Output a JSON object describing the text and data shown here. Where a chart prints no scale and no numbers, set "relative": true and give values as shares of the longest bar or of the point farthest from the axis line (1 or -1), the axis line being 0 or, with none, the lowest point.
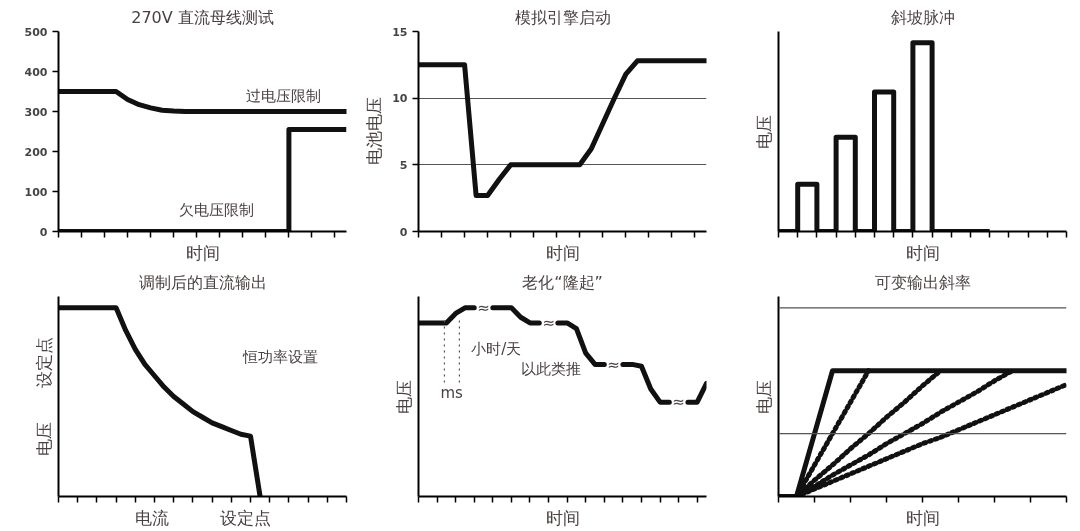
{
  "chart_data": [
    {
      "type": "line",
      "title": "270V 直流母线测试",
      "xlabel": "时间",
      "ylim": [
        0,
        500
      ],
      "yticks": [
        0,
        100,
        200,
        300,
        400,
        500
      ],
      "tick_labels": "y",
      "grid": false,
      "categories": [
        null,
        null,
        null,
        null,
        null,
        null,
        null,
        null,
        null,
        null,
        null,
        null,
        null,
        null,
        null,
        null,
        null,
        null,
        null,
        null,
        null,
        null,
        null,
        null,
        null,
        null
      ],
      "series": [
        {
          "color": "#111111",
          "values": [
            350,
            350,
            350,
            350,
            350,
            350,
            330,
            317,
            309,
            303,
            301,
            300,
            300,
            300,
            300,
            300,
            300,
            300,
            300,
            300,
            300,
            300,
            300,
            300,
            300,
            300
          ]
        },
        {
          "type": "step",
          "color": "#111111",
          "values": [
            0,
            0,
            0,
            0,
            0,
            0,
            0,
            0,
            0,
            0,
            0,
            0,
            0,
            0,
            0,
            0,
            0,
            0,
            0,
            0,
            255,
            255,
            255,
            255,
            255,
            255
          ]
        }
      ],
      "annotations": [
        "过电压限制",
        "欠电压限制"
      ]
    },
    {
      "type": "line",
      "title": "模拟引擎启动",
      "xlabel": "时间",
      "ylabel": "电池电压",
      "ylim": [
        0,
        15
      ],
      "yticks": [
        0,
        5,
        10,
        15
      ],
      "tick_labels": "y",
      "grid": "y",
      "categories": [
        null,
        null,
        null,
        null,
        null,
        null,
        null,
        null,
        null,
        null,
        null,
        null,
        null,
        null,
        null,
        null,
        null,
        null,
        null,
        null,
        null,
        null,
        null,
        null,
        null,
        null
      ],
      "series": [
        {
          "color": "#111111",
          "values": [
            12.5,
            12.5,
            12.5,
            12.5,
            12.5,
            2.7,
            2.7,
            3.9,
            5,
            5,
            5,
            5,
            5,
            5,
            5,
            6.2,
            8.1,
            10,
            11.8,
            12.8,
            12.8,
            12.8,
            12.8,
            12.8,
            12.8,
            12.8
          ]
        }
      ]
    },
    {
      "type": "step",
      "title": "斜坡脉冲",
      "xlabel": "时间",
      "ylabel": "电压",
      "relative": true,
      "tick_labels": false,
      "grid": false,
      "categories": [
        null,
        null,
        null,
        null,
        null,
        null,
        null,
        null,
        null,
        null,
        null,
        null,
        null,
        null,
        null,
        null
      ],
      "series": [
        {
          "color": "#111111",
          "values": [
            0,
            0.25,
            0,
            0.5,
            0,
            0.74,
            0,
            1,
            0,
            0,
            0,
            0,
            null,
            null,
            null,
            null
          ]
        }
      ]
    },
    {
      "type": "line",
      "title": "调制后的直流输出",
      "xlabel": "电流　　　设定点",
      "ylabel": "电压　　设定点",
      "relative": true,
      "tick_labels": false,
      "grid": false,
      "categories": [
        null,
        null,
        null,
        null,
        null,
        null,
        null,
        null,
        null,
        null,
        null,
        null,
        null,
        null,
        null,
        null,
        null,
        null,
        null,
        null,
        null,
        null,
        null,
        null,
        null,
        null,
        null,
        null,
        null,
        null,
        null
      ],
      "series": [
        {
          "color": "#111111",
          "values": [
            1,
            1,
            1,
            1,
            1,
            1,
            1,
            0.88,
            0.78,
            0.7,
            0.64,
            0.58,
            0.53,
            0.49,
            0.45,
            0.42,
            0.39,
            0.37,
            0.35,
            0.33,
            0.32,
            0,
            null,
            null,
            null,
            null,
            null,
            null,
            null,
            null,
            null
          ]
        }
      ],
      "annotations": [
        "恒功率设置"
      ]
    },
    {
      "type": "line",
      "title": "老化“隆起”",
      "xlabel": "时间",
      "ylabel": "电压",
      "relative": true,
      "tick_labels": false,
      "grid": false,
      "categories": [
        null,
        null,
        null,
        null,
        null,
        null,
        null,
        null,
        null,
        null,
        null,
        null,
        null,
        null,
        null,
        null,
        null,
        null,
        null,
        null,
        null,
        null,
        null,
        null,
        null,
        null,
        null,
        null,
        null,
        null,
        null,
        null
      ],
      "series": [
        {
          "color": "#111111",
          "values": [
            0.92,
            0.92,
            0.92,
            0.92,
            0.97,
            1,
            1,
            null,
            null,
            null,
            null,
            null,
            null,
            null,
            null,
            null,
            null,
            null,
            null,
            null,
            null,
            null,
            null,
            null,
            null,
            null,
            null,
            null,
            null,
            null,
            null,
            null
          ]
        },
        {
          "color": "#111111",
          "values": [
            null,
            null,
            null,
            null,
            null,
            null,
            null,
            null,
            1,
            1,
            1,
            0.95,
            0.92,
            0.92,
            null,
            null,
            null,
            null,
            null,
            null,
            null,
            null,
            null,
            null,
            null,
            null,
            null,
            null,
            null,
            null,
            null,
            null
          ]
        },
        {
          "color": "#111111",
          "values": [
            null,
            null,
            null,
            null,
            null,
            null,
            null,
            null,
            null,
            null,
            null,
            null,
            null,
            null,
            null,
            0.92,
            0.92,
            0.89,
            0.76,
            0.7,
            0.7,
            null,
            null,
            null,
            null,
            null,
            null,
            null,
            null,
            null,
            null,
            null
          ]
        },
        {
          "color": "#111111",
          "values": [
            null,
            null,
            null,
            null,
            null,
            null,
            null,
            null,
            null,
            null,
            null,
            null,
            null,
            null,
            null,
            null,
            null,
            null,
            null,
            null,
            null,
            null,
            0.7,
            0.7,
            0.69,
            0.57,
            0.5,
            0.5,
            null,
            null,
            null,
            null
          ]
        },
        {
          "color": "#111111",
          "values": [
            null,
            null,
            null,
            null,
            null,
            null,
            null,
            null,
            null,
            null,
            null,
            null,
            null,
            null,
            null,
            null,
            null,
            null,
            null,
            null,
            null,
            null,
            null,
            null,
            null,
            null,
            null,
            null,
            null,
            0.5,
            0.5,
            0.6
          ]
        }
      ],
      "annotations": [
        "≈",
        "≈",
        "≈",
        "≈",
        "小时/天",
        "以此类推",
        "ms"
      ]
    },
    {
      "type": "line",
      "title": "可变输出斜率",
      "xlabel": "时间",
      "ylabel": "电压",
      "relative": true,
      "tick_labels": false,
      "grid": false,
      "categories": [
        null,
        null,
        null,
        null,
        null,
        null,
        null,
        null,
        null,
        null,
        null,
        null,
        null,
        null,
        null,
        null,
        null
      ],
      "ref_lines": [
        {
          "axis": "y",
          "value": 0.5,
          "color": "#555555"
        },
        {
          "axis": "y",
          "value": 1.5,
          "color": "#555555"
        }
      ],
      "series": [
        {
          "color": "#111111",
          "values": [
            0,
            0,
            0.5,
            1,
            1,
            1,
            1,
            1,
            1,
            1,
            1,
            1,
            1,
            1,
            1,
            1,
            1
          ]
        },
        {
          "color": "#111111",
          "line_style": "dotted",
          "values": [
            null,
            0,
            0.25,
            0.5,
            0.75,
            1,
            null,
            null,
            null,
            null,
            null,
            null,
            null,
            null,
            null,
            null,
            null
          ]
        },
        {
          "color": "#111111",
          "line_style": "dotted",
          "values": [
            null,
            0,
            0.13,
            0.25,
            0.38,
            0.5,
            0.63,
            0.75,
            0.88,
            1,
            null,
            null,
            null,
            null,
            null,
            null,
            null
          ]
        },
        {
          "color": "#111111",
          "line_style": "dotted",
          "values": [
            null,
            0,
            0.08,
            0.17,
            0.25,
            0.33,
            0.42,
            0.5,
            0.58,
            0.67,
            0.75,
            0.83,
            0.92,
            1,
            null,
            null,
            null
          ]
        },
        {
          "color": "#111111",
          "line_style": "dotted",
          "values": [
            null,
            0,
            0.06,
            0.12,
            0.18,
            0.24,
            0.3,
            0.36,
            0.42,
            0.47,
            0.53,
            0.59,
            0.65,
            0.71,
            0.77,
            0.83,
            0.89
          ]
        }
      ]
    }
  ]
}
